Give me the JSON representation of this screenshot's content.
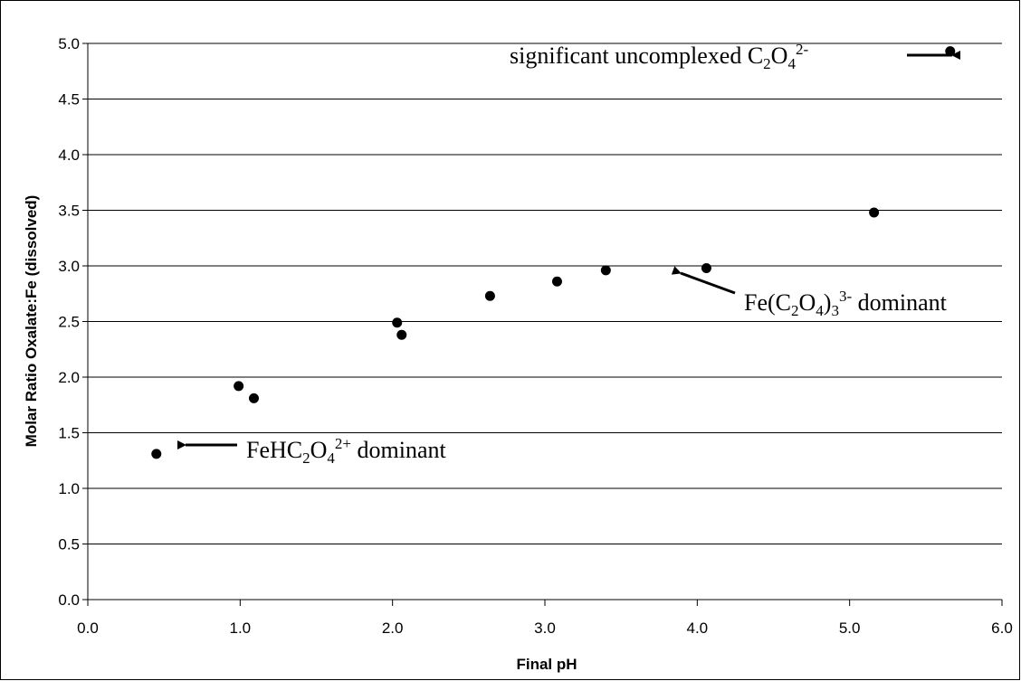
{
  "chart_data": {
    "type": "scatter",
    "xlabel": "Final pH",
    "ylabel": "Molar Ratio Oxalate:Fe (dissolved)",
    "xlim": [
      0.0,
      6.0
    ],
    "ylim": [
      0.0,
      5.0
    ],
    "x_ticks": [
      "0.0",
      "1.0",
      "2.0",
      "3.0",
      "4.0",
      "5.0",
      "6.0"
    ],
    "y_ticks": [
      "0.0",
      "0.5",
      "1.0",
      "1.5",
      "2.0",
      "2.5",
      "3.0",
      "3.5",
      "4.0",
      "4.5",
      "5.0"
    ],
    "grid": "horizontal",
    "legend": "none",
    "marker_color": "#000000",
    "points": [
      {
        "x": 0.45,
        "y": 1.31
      },
      {
        "x": 0.99,
        "y": 1.92
      },
      {
        "x": 1.09,
        "y": 1.81
      },
      {
        "x": 2.03,
        "y": 2.49
      },
      {
        "x": 2.06,
        "y": 2.38
      },
      {
        "x": 2.64,
        "y": 2.73
      },
      {
        "x": 3.08,
        "y": 2.86
      },
      {
        "x": 3.4,
        "y": 2.96
      },
      {
        "x": 4.06,
        "y": 2.98
      },
      {
        "x": 5.16,
        "y": 3.48
      },
      {
        "x": 5.66,
        "y": 4.93
      }
    ],
    "annotations": [
      {
        "parts": [
          "FeHC",
          "2",
          "O",
          "4",
          "2+",
          " dominant"
        ]
      },
      {
        "parts": [
          "Fe(C",
          "2",
          "O",
          "4",
          ")",
          "3",
          "3-",
          " dominant"
        ]
      },
      {
        "parts": [
          "significant uncomplexed C",
          "2",
          "O",
          "4",
          "2-"
        ]
      }
    ]
  }
}
